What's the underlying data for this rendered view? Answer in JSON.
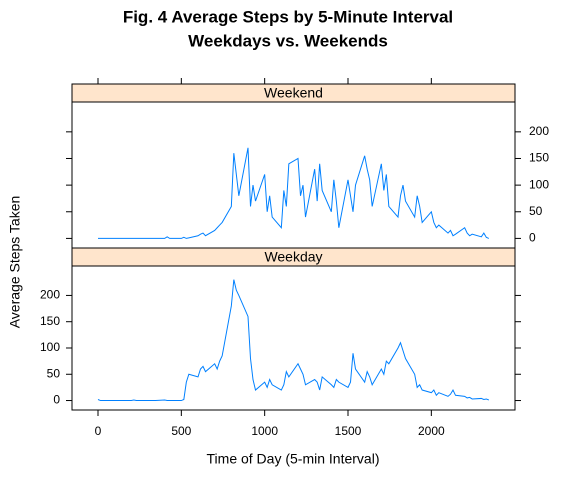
{
  "chart_data": {
    "type": "line",
    "title": [
      "Fig. 4 Average Steps by 5-Minute Interval",
      "Weekdays vs. Weekends"
    ],
    "x_label": "Time of Day (5-min Interval)",
    "y_label": "Average Steps Taken",
    "x": [
      0,
      15,
      30,
      45,
      100,
      115,
      130,
      145,
      200,
      215,
      230,
      245,
      300,
      315,
      330,
      345,
      400,
      415,
      430,
      445,
      500,
      515,
      530,
      545,
      600,
      615,
      630,
      645,
      700,
      715,
      730,
      745,
      800,
      815,
      830,
      845,
      900,
      915,
      930,
      945,
      1000,
      1015,
      1030,
      1045,
      1100,
      1115,
      1130,
      1145,
      1200,
      1215,
      1230,
      1245,
      1300,
      1315,
      1330,
      1345,
      1400,
      1415,
      1430,
      1445,
      1500,
      1515,
      1530,
      1545,
      1600,
      1615,
      1630,
      1645,
      1700,
      1715,
      1730,
      1745,
      1800,
      1815,
      1830,
      1845,
      1900,
      1915,
      1930,
      1945,
      2000,
      2015,
      2030,
      2045,
      2100,
      2115,
      2130,
      2145,
      2200,
      2215,
      2230,
      2245,
      2300,
      2315,
      2330,
      2345
    ],
    "series": [
      {
        "name": "Weekend",
        "color": "#0080ff",
        "values": [
          0,
          0,
          0,
          0,
          0,
          0,
          0,
          0,
          0,
          0,
          0,
          0,
          0,
          0,
          0,
          0,
          0,
          3,
          0,
          0,
          0,
          2,
          0,
          1,
          5,
          8,
          10,
          5,
          15,
          20,
          25,
          30,
          60,
          160,
          120,
          80,
          170,
          60,
          100,
          70,
          120,
          50,
          80,
          40,
          20,
          90,
          60,
          140,
          150,
          80,
          100,
          40,
          130,
          70,
          140,
          90,
          50,
          110,
          70,
          20,
          110,
          80,
          50,
          100,
          155,
          130,
          110,
          60,
          140,
          90,
          120,
          60,
          40,
          80,
          100,
          70,
          40,
          80,
          60,
          30,
          50,
          30,
          20,
          25,
          10,
          15,
          5,
          8,
          20,
          10,
          5,
          8,
          3,
          10,
          2,
          0
        ]
      },
      {
        "name": "Weekday",
        "color": "#0080ff",
        "values": [
          2,
          0,
          0,
          0,
          0,
          0,
          0,
          0,
          0,
          1,
          0,
          0,
          0,
          0,
          0,
          0,
          1,
          0,
          0,
          0,
          0,
          2,
          35,
          50,
          45,
          60,
          65,
          55,
          70,
          60,
          75,
          85,
          180,
          230,
          210,
          200,
          160,
          80,
          40,
          20,
          35,
          25,
          40,
          30,
          20,
          30,
          55,
          45,
          70,
          60,
          50,
          30,
          40,
          35,
          20,
          45,
          30,
          25,
          40,
          35,
          25,
          35,
          90,
          60,
          35,
          55,
          45,
          30,
          60,
          50,
          75,
          70,
          100,
          110,
          95,
          80,
          50,
          25,
          30,
          20,
          15,
          20,
          10,
          15,
          8,
          12,
          20,
          10,
          8,
          5,
          6,
          3,
          4,
          2,
          3,
          1
        ]
      }
    ],
    "xlim": [
      -156,
      2502
    ],
    "xticks": [
      0,
      500,
      1000,
      1500,
      2000
    ],
    "ylim": [
      -18,
      256
    ],
    "yticks": [
      0,
      50,
      100,
      150,
      200
    ]
  }
}
